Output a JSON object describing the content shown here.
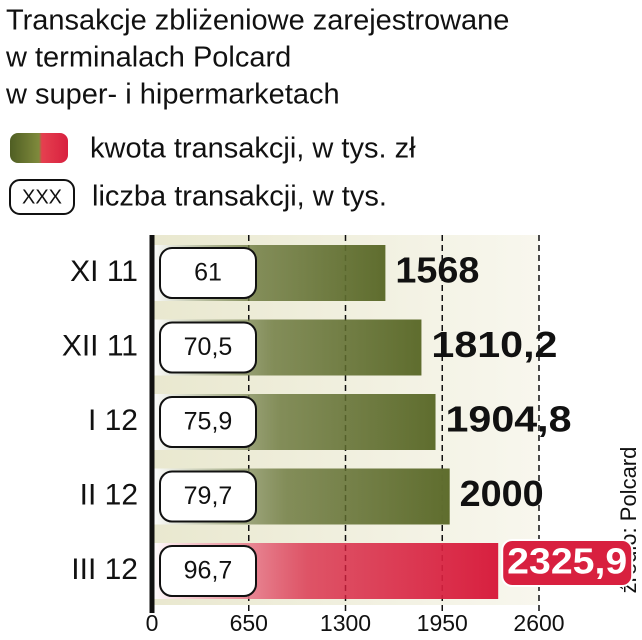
{
  "chart_data": {
    "type": "bar",
    "orientation": "horizontal",
    "title_lines": [
      "Transakcje zbliżeniowe zarejestrowane",
      "w terminalach Polcard",
      "w super- i hipermarketach"
    ],
    "categories": [
      "XI 11",
      "XII 11",
      "I 12",
      "II 12",
      "III 12"
    ],
    "series": [
      {
        "name": "kwota transakcji, w tys. zł",
        "colors": [
          "#5f6d2e",
          "#5f6d2e",
          "#5f6d2e",
          "#5f6d2e",
          "#d8203f"
        ],
        "values": [
          1568,
          1810.2,
          1904.8,
          2000,
          2325.9
        ],
        "value_labels": [
          "1568",
          "1810,2",
          "1904,8",
          "2000",
          "2325,9"
        ]
      },
      {
        "name": "liczba transakcji, w tys.",
        "values": [
          61,
          70.5,
          75.9,
          79.7,
          96.7
        ],
        "value_labels": [
          "61",
          "70,5",
          "75,9",
          "79,7",
          "96,7"
        ]
      }
    ],
    "legend_box_text": "XXX",
    "xlim": [
      0,
      2600
    ],
    "xticks": [
      0,
      650,
      1300,
      1950,
      2600
    ],
    "grid": true,
    "source": "źródło: Polcard"
  }
}
